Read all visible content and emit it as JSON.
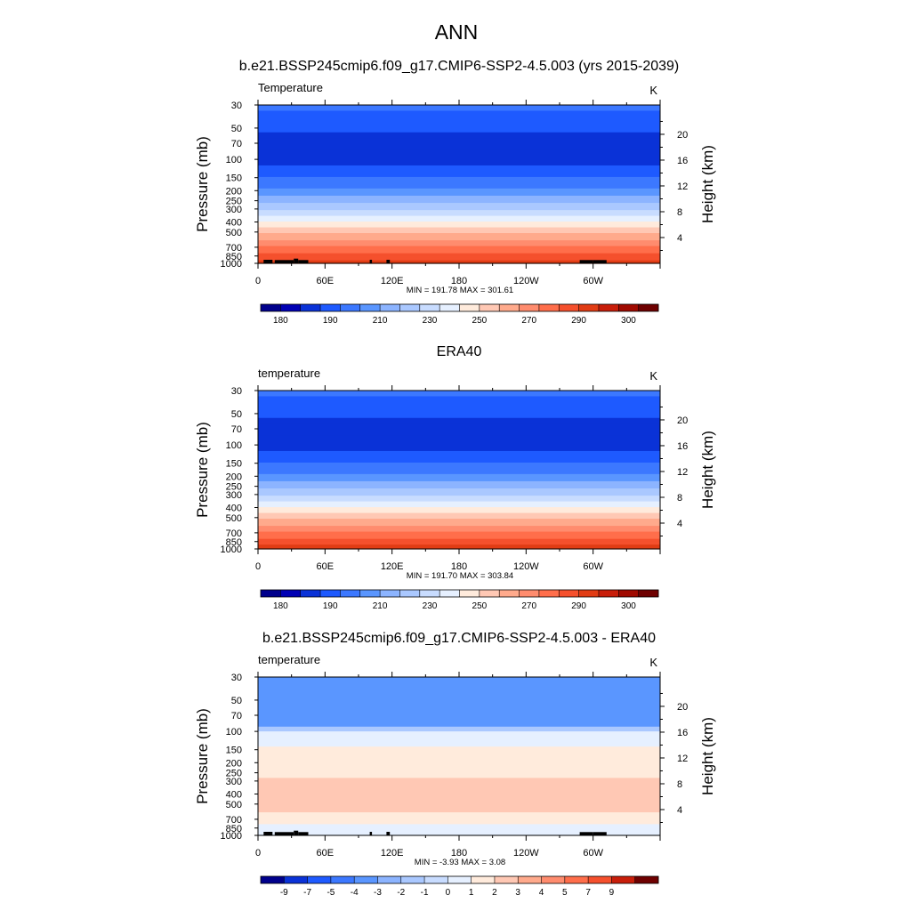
{
  "figure_title": "ANN",
  "colors": {
    "abs": [
      "#00008c",
      "#0000b4",
      "#0a32d7",
      "#1e5aff",
      "#3c78ff",
      "#5a96ff",
      "#8cb4ff",
      "#aac8ff",
      "#c8dcff",
      "#e6f0ff",
      "#ffebdc",
      "#ffc8b4",
      "#ffaa8c",
      "#ff8c6e",
      "#ff6e4b",
      "#f5502d",
      "#e13c14",
      "#c81e0a",
      "#a00a00",
      "#6e0000"
    ],
    "diff": [
      "#00008c",
      "#0a32d7",
      "#1e5aff",
      "#3c78ff",
      "#5a96ff",
      "#8cb4ff",
      "#aac8ff",
      "#c8dcff",
      "#e6f0ff",
      "#ffebdc",
      "#ffc8b4",
      "#ffaa8c",
      "#ff8c6e",
      "#ff6e4b",
      "#f5502d",
      "#c81e0a",
      "#6e0000"
    ],
    "topo": "#000000"
  },
  "chart_data": [
    {
      "type": "heatmap",
      "title": "b.e21.BSSP245cmip6.f09_g17.CMIP6-SSP2-4.5.003 (yrs 2015-2039)",
      "left_label": "Temperature",
      "right_label": "K",
      "ylabel": "Pressure (mb)",
      "ylabel_right": "Height (km)",
      "xticks": [
        "0",
        "60E",
        "120E",
        "180",
        "120W",
        "60W"
      ],
      "x_values": [
        0,
        60,
        120,
        180,
        240,
        300
      ],
      "xlim": [
        0,
        360
      ],
      "yticks": [
        "30",
        "50",
        "70",
        "100",
        "150",
        "200",
        "250",
        "300",
        "400",
        "500",
        "700",
        "850",
        "1000"
      ],
      "y_values": [
        30,
        50,
        70,
        100,
        150,
        200,
        250,
        300,
        400,
        500,
        700,
        850,
        1000
      ],
      "ylim": [
        30,
        1000
      ],
      "height_ticks": [
        "4",
        "8",
        "12",
        "16",
        "20"
      ],
      "height_values": [
        4,
        8,
        12,
        16,
        20
      ],
      "stats": "MIN = 191.78  MAX = 301.61",
      "min": 191.78,
      "max": 301.61,
      "colorbar_labels": [
        "180",
        "190",
        "210",
        "230",
        "250",
        "270",
        "290",
        "300"
      ],
      "profile": [
        [
          30,
          205
        ],
        [
          50,
          197
        ],
        [
          70,
          193
        ],
        [
          100,
          193
        ],
        [
          150,
          203
        ],
        [
          200,
          212
        ],
        [
          250,
          222
        ],
        [
          300,
          230
        ],
        [
          400,
          245
        ],
        [
          500,
          257
        ],
        [
          700,
          274
        ],
        [
          850,
          283
        ],
        [
          1000,
          290
        ]
      ],
      "topography": [
        [
          5,
          13,
          925
        ],
        [
          15,
          32,
          930
        ],
        [
          32,
          36,
          900
        ],
        [
          36,
          45,
          930
        ],
        [
          100,
          102,
          925
        ],
        [
          115,
          118,
          925
        ],
        [
          288,
          300,
          930
        ],
        [
          300,
          312,
          930
        ]
      ]
    },
    {
      "type": "heatmap",
      "title": "ERA40",
      "left_label": "temperature",
      "right_label": "K",
      "ylabel": "Pressure (mb)",
      "ylabel_right": "Height (km)",
      "xticks": [
        "0",
        "60E",
        "120E",
        "180",
        "120W",
        "60W"
      ],
      "x_values": [
        0,
        60,
        120,
        180,
        240,
        300
      ],
      "xlim": [
        0,
        360
      ],
      "yticks": [
        "30",
        "50",
        "70",
        "100",
        "150",
        "200",
        "250",
        "300",
        "400",
        "500",
        "700",
        "850",
        "1000"
      ],
      "y_values": [
        30,
        50,
        70,
        100,
        150,
        200,
        250,
        300,
        400,
        500,
        700,
        850,
        1000
      ],
      "ylim": [
        30,
        1000
      ],
      "height_ticks": [
        "4",
        "8",
        "12",
        "16",
        "20"
      ],
      "height_values": [
        4,
        8,
        12,
        16,
        20
      ],
      "stats": "MIN = 191.70  MAX = 303.84",
      "min": 191.7,
      "max": 303.84,
      "colorbar_labels": [
        "180",
        "190",
        "210",
        "230",
        "250",
        "270",
        "290",
        "300"
      ],
      "profile": [
        [
          30,
          205
        ],
        [
          50,
          197
        ],
        [
          70,
          193
        ],
        [
          100,
          193
        ],
        [
          150,
          203
        ],
        [
          200,
          212
        ],
        [
          250,
          222
        ],
        [
          300,
          230
        ],
        [
          400,
          245
        ],
        [
          500,
          257
        ],
        [
          700,
          274
        ],
        [
          850,
          283
        ],
        [
          1000,
          291
        ]
      ],
      "topography": []
    },
    {
      "type": "heatmap",
      "title": "b.e21.BSSP245cmip6.f09_g17.CMIP6-SSP2-4.5.003 - ERA40",
      "left_label": "temperature",
      "right_label": "K",
      "ylabel": "Pressure (mb)",
      "ylabel_right": "Height (km)",
      "xticks": [
        "0",
        "60E",
        "120E",
        "180",
        "120W",
        "60W"
      ],
      "x_values": [
        0,
        60,
        120,
        180,
        240,
        300
      ],
      "xlim": [
        0,
        360
      ],
      "yticks": [
        "30",
        "50",
        "70",
        "100",
        "150",
        "200",
        "250",
        "300",
        "400",
        "500",
        "700",
        "850",
        "1000"
      ],
      "y_values": [
        30,
        50,
        70,
        100,
        150,
        200,
        250,
        300,
        400,
        500,
        700,
        850,
        1000
      ],
      "ylim": [
        30,
        1000
      ],
      "height_ticks": [
        "4",
        "8",
        "12",
        "16",
        "20"
      ],
      "height_values": [
        4,
        8,
        12,
        16,
        20
      ],
      "stats": "MIN = -3.93  MAX =  3.08",
      "min": -3.93,
      "max": 3.08,
      "colorbar_labels": [
        "-9",
        "-7",
        "-5",
        "-4",
        "-3",
        "-2",
        "-1",
        "0",
        "1",
        "2",
        "3",
        "4",
        "5",
        "7",
        "9"
      ],
      "layers": [
        {
          "p_top": 30,
          "p_bottom": 90,
          "value": -3.5
        },
        {
          "p_top": 90,
          "p_bottom": 100,
          "value": -1.5
        },
        {
          "p_top": 100,
          "p_bottom": 140,
          "value": 0.5
        },
        {
          "p_top": 140,
          "p_bottom": 280,
          "value": 1.5
        },
        {
          "p_top": 280,
          "p_bottom": 600,
          "value": 2.5
        },
        {
          "p_top": 600,
          "p_bottom": 780,
          "value": 1.5
        },
        {
          "p_top": 780,
          "p_bottom": 1000,
          "value": 0.5
        }
      ],
      "topography": [
        [
          5,
          13,
          925
        ],
        [
          15,
          32,
          930
        ],
        [
          32,
          36,
          900
        ],
        [
          36,
          45,
          930
        ],
        [
          100,
          102,
          925
        ],
        [
          115,
          118,
          925
        ],
        [
          288,
          300,
          930
        ],
        [
          300,
          312,
          930
        ]
      ]
    }
  ]
}
